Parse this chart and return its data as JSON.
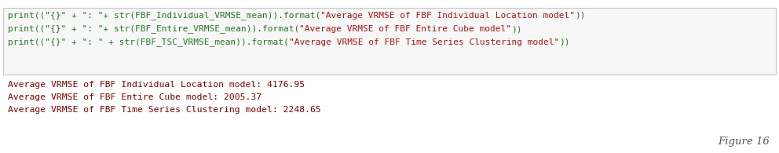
{
  "code_lines": [
    [
      {
        "text": "print((\"{}\" + \": \"+ str(FBF_Individual_VRMSE_mean)).format(",
        "color": "#267726"
      },
      {
        "text": "\"Average VRMSE of FBF Individual Location model\"",
        "color": "#a31515"
      },
      {
        "text": "))",
        "color": "#267726"
      }
    ],
    [
      {
        "text": "print((\"{}\" + \": \"+ str(FBF_Entire_VRMSE_mean)).format(",
        "color": "#267726"
      },
      {
        "text": "\"Average VRMSE of FBF Entire Cube model\"",
        "color": "#a31515"
      },
      {
        "text": "))",
        "color": "#267726"
      }
    ],
    [
      {
        "text": "print((\"{}\" + \": \" + str(FBF_TSC_VRMSE_mean)).format(",
        "color": "#267726"
      },
      {
        "text": "\"Average VRMSE of FBF Time Series Clustering model\"",
        "color": "#a31515"
      },
      {
        "text": "))",
        "color": "#267726"
      }
    ]
  ],
  "output_lines": [
    "Average VRMSE of FBF Individual Location model: 4176.95",
    "Average VRMSE of FBF Entire Cube model: 2005.37",
    "Average VRMSE of FBF Time Series Clustering model: 2248.65"
  ],
  "figure_label": "Figure 16",
  "bg_color": "#ffffff",
  "code_box_facecolor": "#f7f7f7",
  "code_box_edgecolor": "#c8c8c8",
  "output_text_color": "#7b0000",
  "figure_label_color": "#555555",
  "code_font_size": 8.0,
  "output_font_size": 8.2,
  "figure_label_font_size": 9.5
}
